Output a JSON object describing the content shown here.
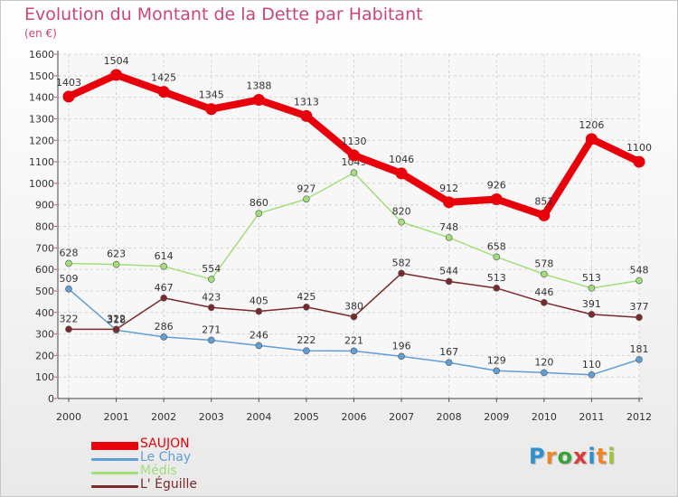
{
  "title": "Evolution du Montant de la Dette par Habitant",
  "subtitle": "(en €)",
  "brand": {
    "letters": [
      "P",
      "r",
      "o",
      "x",
      "i",
      "t",
      "i"
    ],
    "colors": [
      "#2f8fd3",
      "#f0862a",
      "#3ba13b",
      "#d93b3b",
      "#2f8fd3",
      "#f0862a",
      "#9bc53d"
    ]
  },
  "chart_data": {
    "type": "line",
    "x": [
      "2000",
      "2001",
      "2002",
      "2003",
      "2004",
      "2005",
      "2006",
      "2007",
      "2008",
      "2009",
      "2010",
      "2011",
      "2012"
    ],
    "ylim": [
      0,
      1600
    ],
    "yticks": [
      "0",
      "100",
      "200",
      "300",
      "400",
      "500",
      "600",
      "700",
      "800",
      "900",
      "1000",
      "1100",
      "1200",
      "1300",
      "1400",
      "1500",
      "1600"
    ],
    "grid": true,
    "legend_position": "bottom-left",
    "series": [
      {
        "name": "SAUJON",
        "color": "#e8000b",
        "values": [
          1403,
          1504,
          1425,
          1345,
          1388,
          1313,
          1130,
          1046,
          912,
          926,
          851,
          1206,
          1100
        ],
        "labels": [
          "1403",
          "1504",
          "1425",
          "1345",
          "1388",
          "1313",
          "1130",
          "1046",
          "912",
          "926",
          "851",
          "1206",
          "1100"
        ]
      },
      {
        "name": "Le Chay",
        "color": "#5f9fd6",
        "values": [
          509,
          318,
          286,
          271,
          246,
          222,
          221,
          196,
          167,
          129,
          120,
          110,
          181
        ],
        "labels": [
          "509",
          "318",
          "286",
          "271",
          "246",
          "222",
          "221",
          "196",
          "167",
          "129",
          "120",
          "110",
          "181"
        ]
      },
      {
        "name": "Médis",
        "color": "#a2de7a",
        "values": [
          628,
          623,
          614,
          554,
          860,
          927,
          1049,
          820,
          748,
          658,
          578,
          513,
          548
        ],
        "labels": [
          "628",
          "623",
          "614",
          "554",
          "860",
          "927",
          "1049",
          "820",
          "748",
          "658",
          "578",
          "513",
          "548"
        ]
      },
      {
        "name": "L' Éguille",
        "color": "#7a2a2a",
        "values": [
          322,
          322,
          467,
          423,
          405,
          425,
          380,
          582,
          544,
          513,
          446,
          391,
          377
        ],
        "labels": [
          "322",
          "322",
          "467",
          "423",
          "405",
          "425",
          "380",
          "582",
          "544",
          "513",
          "446",
          "391",
          "377"
        ]
      }
    ]
  }
}
